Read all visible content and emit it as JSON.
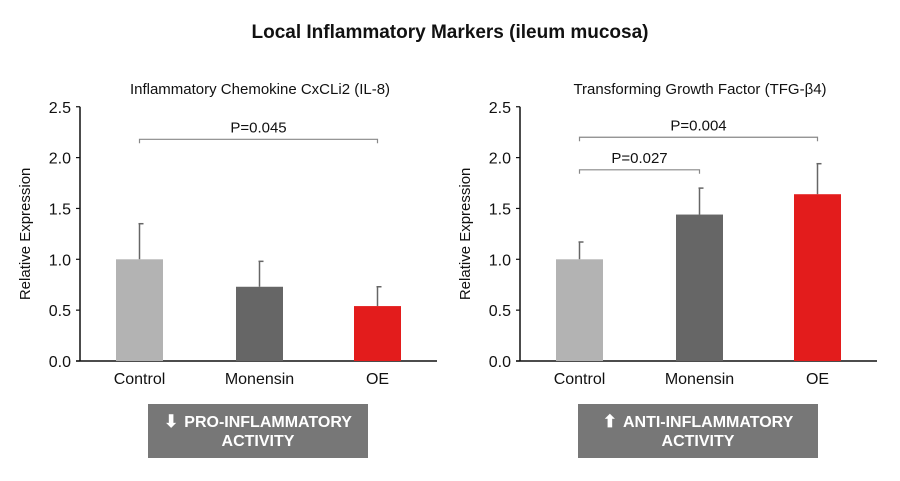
{
  "title": "Local Inflammatory Markers (ileum mucosa)",
  "colors": {
    "Control": "#b3b3b3",
    "Monensin": "#666666",
    "OE": "#e31c1c",
    "axis": "#111111",
    "bracket": "#888888",
    "box": "#777777"
  },
  "chart_data": [
    {
      "type": "bar",
      "title": "Inflammatory Chemokine CxCLi2 (IL-8)",
      "xlabel": "",
      "ylabel": "Relative Expression",
      "ylim": [
        0,
        2.5
      ],
      "yticks": [
        "0.0",
        "0.5",
        "1.0",
        "1.5",
        "2.0",
        "2.5"
      ],
      "categories": [
        "Control",
        "Monensin",
        "OE"
      ],
      "values": [
        1.0,
        0.73,
        0.54
      ],
      "error_upper": [
        1.35,
        0.98,
        0.73
      ],
      "annotations": [
        {
          "label": "P=0.045",
          "from": "Control",
          "to": "OE",
          "level": 2.18
        }
      ],
      "callout": {
        "icon": "arrow-down",
        "line1": "PRO-INFLAMMATORY",
        "line2": "ACTIVITY"
      }
    },
    {
      "type": "bar",
      "title": "Transforming Growth Factor (TFG-β4)",
      "xlabel": "",
      "ylabel": "Relative Expression",
      "ylim": [
        0,
        2.5
      ],
      "yticks": [
        "0.0",
        "0.5",
        "1.0",
        "1.5",
        "2.0",
        "2.5"
      ],
      "categories": [
        "Control",
        "Monensin",
        "OE"
      ],
      "values": [
        1.0,
        1.44,
        1.64
      ],
      "error_upper": [
        1.17,
        1.7,
        1.94
      ],
      "annotations": [
        {
          "label": "P=0.004",
          "from": "Control",
          "to": "OE",
          "level": 2.2
        },
        {
          "label": "P=0.027",
          "from": "Control",
          "to": "Monensin",
          "level": 1.88
        }
      ],
      "callout": {
        "icon": "arrow-up",
        "line1": "ANTI-INFLAMMATORY",
        "line2": "ACTIVITY"
      }
    }
  ]
}
